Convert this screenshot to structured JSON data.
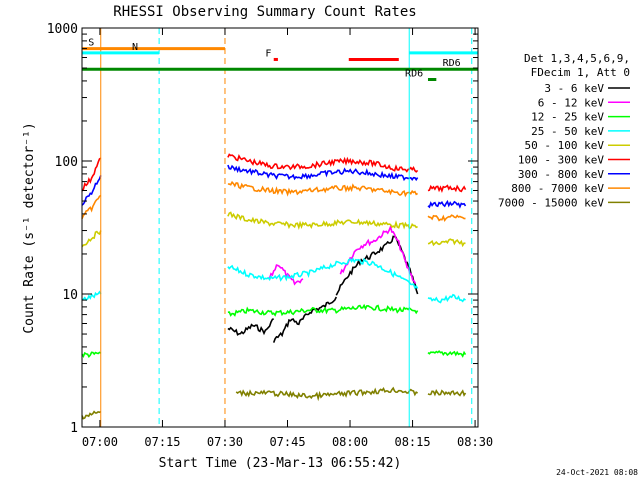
{
  "chart_data": {
    "type": "line",
    "title": "RHESSI Observing Summary Count Rates",
    "xlabel": "Start Time (23-Mar-13 06:55:42)",
    "ylabel": "Count Rate (s⁻¹ detector⁻¹)",
    "yscale": "log",
    "xlim_minutes": [
      0,
      95
    ],
    "ylim": [
      1,
      1000
    ],
    "x_ticks": [
      "07:00",
      "07:15",
      "07:30",
      "07:45",
      "08:00",
      "08:15",
      "08:30"
    ],
    "x_tick_minutes": [
      4.3,
      19.3,
      34.3,
      49.3,
      64.3,
      79.3,
      94.3
    ],
    "y_ticks": [
      "1",
      "10",
      "100",
      "1000"
    ],
    "y_tick_values": [
      1,
      10,
      100,
      1000
    ],
    "legend": {
      "position": "right",
      "header": [
        "Det 1,3,4,5,6,9,",
        "FDecim 1, Att 0"
      ]
    },
    "series": [
      {
        "name": "3 - 6 keV",
        "color": "#000000",
        "segments": [
          {
            "x": [
              35,
              38,
              41,
              44,
              46
            ],
            "y": [
              5.5,
              5.0,
              5.8,
              5.2,
              6.5
            ]
          },
          {
            "x": [
              46,
              48,
              50,
              52,
              55,
              58,
              61
            ],
            "y": [
              4.5,
              5.0,
              6.5,
              6.0,
              7.5,
              8.0,
              9.5
            ]
          },
          {
            "x": [
              61,
              64,
              67,
              69,
              71,
              73,
              75,
              77,
              79,
              80.5
            ],
            "y": [
              10,
              14,
              18,
              19,
              21,
              23,
              27,
              20,
              14,
              10
            ]
          }
        ]
      },
      {
        "name": "6 - 12 keV",
        "color": "#ff00ff",
        "segments": [
          {
            "x": [
              45,
              47,
              49,
              51,
              53
            ],
            "y": [
              13,
              17,
              14,
              12,
              13
            ]
          },
          {
            "x": [
              62,
              64,
              66,
              68,
              70,
              72,
              74,
              76,
              78,
              80
            ],
            "y": [
              14,
              18,
              22,
              24,
              25,
              28,
              31,
              24,
              16,
              12
            ]
          }
        ]
      },
      {
        "name": "12 - 25 keV",
        "color": "#00ff00",
        "segments": [
          {
            "x": [
              0,
              2,
              4.5
            ],
            "y": [
              3.5,
              3.5,
              3.6
            ]
          },
          {
            "x": [
              35,
              40,
              45,
              50,
              55,
              60,
              65,
              70,
              75,
              80.5
            ],
            "y": [
              7.0,
              7.5,
              7.2,
              7.3,
              7.6,
              7.5,
              7.8,
              7.9,
              7.6,
              7.5
            ]
          },
          {
            "x": [
              83,
              86,
              89,
              92
            ],
            "y": [
              3.5,
              3.6,
              3.6,
              3.5
            ]
          }
        ]
      },
      {
        "name": "25 - 50 keV",
        "color": "#00ffff",
        "segments": [
          {
            "x": [
              0,
              2,
              4.5
            ],
            "y": [
              9,
              9.5,
              10
            ]
          },
          {
            "x": [
              35,
              40,
              45,
              50,
              55,
              60,
              65,
              70,
              75,
              80.5
            ],
            "y": [
              16,
              14,
              13,
              13.5,
              14.5,
              16.5,
              18,
              17,
              14,
              11
            ]
          },
          {
            "x": [
              83,
              86,
              89,
              92
            ],
            "y": [
              9,
              9,
              9.5,
              9
            ]
          }
        ]
      },
      {
        "name": "50 - 100 keV",
        "color": "#cccc00",
        "segments": [
          {
            "x": [
              0,
              2,
              4.5
            ],
            "y": [
              23,
              26,
              30
            ]
          },
          {
            "x": [
              35,
              40,
              45,
              50,
              55,
              60,
              65,
              70,
              75,
              80.5
            ],
            "y": [
              40,
              36,
              34,
              33,
              33,
              34,
              35,
              34,
              33,
              32
            ]
          },
          {
            "x": [
              83,
              86,
              89,
              92
            ],
            "y": [
              24,
              24,
              25,
              24
            ]
          }
        ]
      },
      {
        "name": "100 - 300 keV",
        "color": "#ff0000",
        "segments": [
          {
            "x": [
              0,
              2,
              4.5
            ],
            "y": [
              62,
              72,
              105
            ]
          },
          {
            "x": [
              35,
              40,
              45,
              50,
              55,
              60,
              65,
              70,
              75,
              80.5
            ],
            "y": [
              110,
              100,
              92,
              90,
              92,
              98,
              100,
              96,
              88,
              85
            ]
          },
          {
            "x": [
              83,
              86,
              89,
              92
            ],
            "y": [
              62,
              62,
              63,
              61
            ]
          }
        ]
      },
      {
        "name": "300 - 800 keV",
        "color": "#0000ff",
        "segments": [
          {
            "x": [
              0,
              2,
              4.5
            ],
            "y": [
              48,
              56,
              78
            ]
          },
          {
            "x": [
              35,
              40,
              45,
              50,
              55,
              60,
              65,
              70,
              75,
              80.5
            ],
            "y": [
              90,
              84,
              78,
              76,
              78,
              82,
              84,
              80,
              76,
              75
            ]
          },
          {
            "x": [
              83,
              86,
              89,
              92
            ],
            "y": [
              47,
              47,
              48,
              46
            ]
          }
        ]
      },
      {
        "name": "800 - 7000 keV",
        "color": "#ff8800",
        "segments": [
          {
            "x": [
              0,
              2,
              4.5
            ],
            "y": [
              38,
              43,
              55
            ]
          },
          {
            "x": [
              35,
              40,
              45,
              50,
              55,
              60,
              65,
              70,
              75,
              80.5
            ],
            "y": [
              68,
              63,
              60,
              58,
              60,
              62,
              63,
              61,
              58,
              57
            ]
          },
          {
            "x": [
              83,
              86,
              89,
              92
            ],
            "y": [
              38,
              37,
              38,
              37
            ]
          }
        ]
      },
      {
        "name": "7000 - 15000 keV",
        "color": "#808000",
        "segments": [
          {
            "x": [
              0,
              4.5
            ],
            "y": [
              1.2,
              1.3
            ]
          },
          {
            "x": [
              37,
              45,
              55,
              65,
              75,
              80.5
            ],
            "y": [
              1.8,
              1.8,
              1.7,
              1.8,
              1.9,
              1.8
            ]
          },
          {
            "x": [
              83,
              87,
              92
            ],
            "y": [
              1.8,
              1.8,
              1.8
            ]
          }
        ]
      }
    ],
    "flags": [
      {
        "label": "S",
        "color": "#ff8800",
        "label_minute": 1.5,
        "y": 700,
        "ranges": [
          [
            0,
            34.3
          ]
        ]
      },
      {
        "label": "N",
        "color": "#00ffff",
        "label_minute": 12,
        "y": 650,
        "ranges": [
          [
            0,
            18.5
          ],
          [
            78.5,
            95
          ]
        ]
      },
      {
        "label": "F",
        "color": "#ff0000",
        "label_minute": 44,
        "y": 580,
        "ranges": [
          [
            46,
            47
          ],
          [
            64,
            76
          ]
        ]
      },
      {
        "label": "RD6",
        "color": "#008800",
        "label_minute": 86.5,
        "y": 490,
        "ranges": [
          [
            0,
            95
          ]
        ]
      },
      {
        "label": "RD6",
        "color": "#008800",
        "label_minute": 77.5,
        "y": 410,
        "ranges": [
          [
            83,
            85
          ]
        ]
      }
    ],
    "vertical_markers": [
      {
        "minute": 4.5,
        "color": "#ff8800",
        "style": "solid"
      },
      {
        "minute": 18.5,
        "color": "#00ffff",
        "style": "dashed"
      },
      {
        "minute": 34.3,
        "color": "#ff8800",
        "style": "dashed"
      },
      {
        "minute": 78.5,
        "color": "#00ffff",
        "style": "solid"
      },
      {
        "minute": 93.5,
        "color": "#00ffff",
        "style": "dashed"
      }
    ],
    "timestamp": "24-Oct-2021 08:08"
  }
}
